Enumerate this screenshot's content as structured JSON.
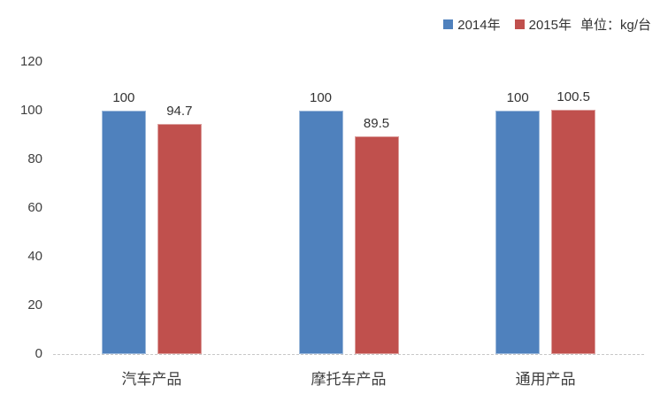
{
  "chart_data": {
    "type": "bar",
    "categories": [
      "汽车产品",
      "摩托车产品",
      "通用产品"
    ],
    "series": [
      {
        "name": "2014年",
        "color": "#4F81BD",
        "values": [
          100,
          100,
          100
        ]
      },
      {
        "name": "2015年",
        "color": "#C0504D",
        "values": [
          94.7,
          89.5,
          100.5
        ]
      }
    ],
    "unit_label": "单位：kg/台",
    "ylim": [
      0,
      120
    ],
    "yticks": [
      0,
      20,
      40,
      60,
      80,
      100,
      120
    ],
    "grid": false,
    "legend_position": "top-right",
    "data_labels": true
  }
}
